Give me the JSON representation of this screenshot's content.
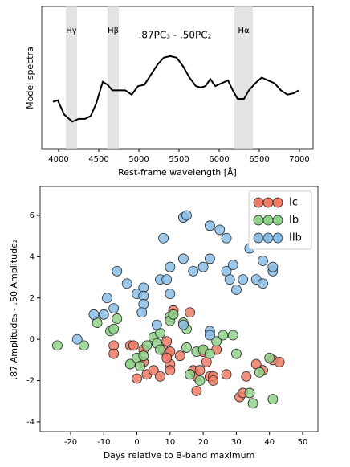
{
  "chart_data": [
    {
      "type": "line",
      "title": ".87PC₃ - .50PC₂",
      "ylabel": "Model spectra",
      "xlabel": "Rest-frame wavelength [Å]",
      "x": [
        3930,
        3990,
        4070,
        4170,
        4250,
        4330,
        4400,
        4470,
        4550,
        4610,
        4670,
        4750,
        4830,
        4910,
        4990,
        5070,
        5150,
        5230,
        5310,
        5390,
        5470,
        5550,
        5630,
        5710,
        5770,
        5830,
        5890,
        5950,
        6030,
        6110,
        6170,
        6230,
        6310,
        6370,
        6450,
        6530,
        6610,
        6690,
        6770,
        6850,
        6930,
        6990
      ],
      "series": [
        {
          "color": "#000000",
          "values": [
            0.33,
            0.34,
            0.24,
            0.19,
            0.21,
            0.21,
            0.23,
            0.32,
            0.47,
            0.45,
            0.41,
            0.41,
            0.41,
            0.38,
            0.44,
            0.45,
            0.52,
            0.59,
            0.64,
            0.65,
            0.64,
            0.58,
            0.5,
            0.44,
            0.43,
            0.44,
            0.49,
            0.44,
            0.46,
            0.48,
            0.41,
            0.35,
            0.35,
            0.41,
            0.46,
            0.5,
            0.48,
            0.46,
            0.41,
            0.38,
            0.39,
            0.41
          ]
        }
      ],
      "bands": [
        {
          "label": "Hγ",
          "range": [
            4090,
            4230
          ]
        },
        {
          "label": "Hβ",
          "range": [
            4610,
            4750
          ]
        },
        {
          "label": "Hα",
          "range": [
            6190,
            6420
          ]
        }
      ],
      "band_color": "#d9d9d9",
      "xlim": [
        3790,
        7170
      ],
      "ylim": [
        0,
        1
      ],
      "xticks": [
        4000,
        4500,
        5000,
        5500,
        6000,
        6500,
        7000
      ]
    },
    {
      "type": "scatter",
      "xlabel": "Days relative to B-band maximum",
      "ylabel": ".87 Amplitude₃ - .50 Amplitude₂",
      "xlim": [
        -29.2,
        54.6
      ],
      "ylim": [
        -4.47,
        7.4
      ],
      "xticks": [
        -20,
        -10,
        0,
        10,
        20,
        30,
        40,
        50
      ],
      "yticks": [
        -4,
        -2,
        0,
        2,
        4,
        6
      ],
      "legend": "upper right",
      "series": [
        {
          "name": "Ic",
          "color": "#ef7b66",
          "x": [
            -7,
            -7,
            -2,
            -1,
            0,
            2,
            3,
            5,
            7,
            8,
            9,
            9,
            10,
            10,
            10,
            11,
            13,
            16,
            17,
            18,
            18,
            19,
            20,
            21,
            22,
            23,
            23,
            24,
            27,
            31,
            32,
            33,
            36,
            38,
            41,
            43,
            9,
            2
          ],
          "y": [
            -0.3,
            -0.7,
            -0.3,
            -0.3,
            -1.9,
            -0.5,
            -1.7,
            -1.5,
            -1.8,
            -0.5,
            -0.7,
            -0.1,
            -0.6,
            -1.2,
            -1.5,
            1.4,
            -0.8,
            1.3,
            -1.5,
            -1.8,
            -2.5,
            -1.5,
            -0.6,
            -1.1,
            -1.8,
            -1.8,
            -2.0,
            -0.5,
            -1.7,
            -2.8,
            -2.6,
            -1.8,
            -1.2,
            -1.5,
            -1.0,
            -1.1,
            -0.9,
            -1.1
          ]
        },
        {
          "name": "Ib",
          "color": "#8fd28a",
          "x": [
            -24,
            -16,
            -12,
            -8,
            -7,
            -6,
            -2,
            -2,
            0,
            1,
            2,
            3,
            5,
            6,
            7,
            7,
            10,
            10,
            11,
            14,
            15,
            15,
            18,
            20,
            22,
            24,
            26,
            29,
            30,
            34,
            35,
            37,
            40,
            41,
            16,
            19
          ],
          "y": [
            -0.3,
            -0.3,
            0.8,
            0.4,
            0.5,
            1.0,
            -1.2,
            -1.2,
            -0.9,
            -1.3,
            -0.8,
            -0.3,
            0.1,
            -0.2,
            0.3,
            -0.5,
            1.1,
            0.9,
            1.2,
            0.8,
            0.5,
            -0.4,
            -0.6,
            -0.5,
            -0.7,
            -0.1,
            0.2,
            0.2,
            -0.7,
            -2.6,
            -3.1,
            -1.6,
            -0.9,
            -2.9,
            -1.7,
            -2.0
          ]
        },
        {
          "name": "IIb",
          "color": "#88bde6",
          "x": [
            -18,
            -13,
            -10,
            -9,
            -7,
            -6,
            -3,
            0,
            2,
            2,
            2,
            1.5,
            7,
            9,
            10,
            10,
            8,
            14,
            15,
            14,
            17,
            20,
            22,
            22,
            25,
            27,
            27,
            28,
            29,
            30,
            32,
            34,
            36,
            38,
            41,
            41,
            38,
            22,
            22,
            14,
            6
          ],
          "y": [
            0,
            1.2,
            1.2,
            2,
            1.5,
            3.3,
            2.7,
            2.2,
            2.5,
            2.1,
            1.7,
            1.3,
            2.9,
            2.9,
            3.5,
            2.2,
            4.9,
            5.9,
            6,
            3.9,
            3.3,
            3.5,
            3.9,
            5.5,
            5.3,
            4.9,
            3.3,
            2.9,
            3.6,
            2.4,
            2.9,
            4.4,
            2.9,
            3.8,
            3.3,
            3.5,
            2.7,
            0.4,
            0.2,
            0.7,
            0.7
          ]
        }
      ]
    }
  ]
}
